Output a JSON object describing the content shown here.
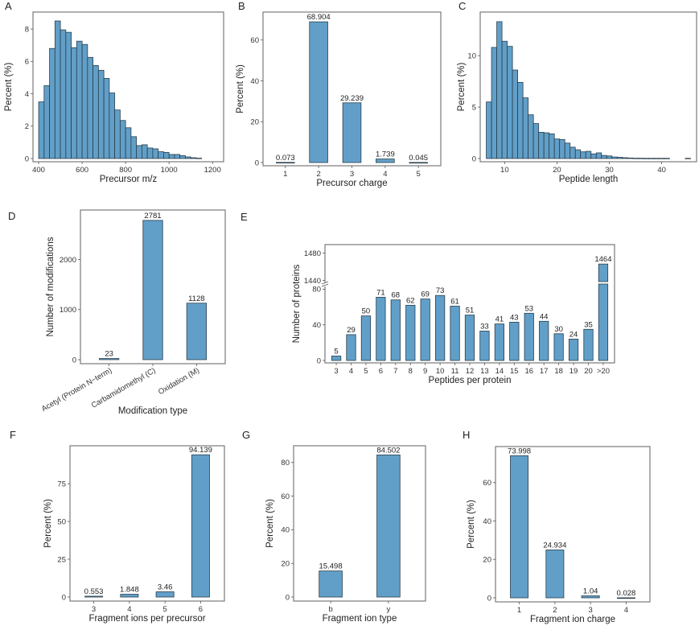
{
  "figure": {
    "bar_color": "#619fc8",
    "edge_color": "#2b3f4c",
    "frame_color": "#7a7a7a"
  },
  "chart_data": [
    {
      "id": "A",
      "panel_label": "A",
      "type": "bar",
      "subtype": "histogram",
      "xlabel": "Precursor m/z",
      "ylabel": "Percent (%)",
      "xlim": [
        385,
        1240
      ],
      "ylim": [
        0,
        8.9
      ],
      "xticks": [
        400,
        600,
        800,
        1000,
        1200
      ],
      "yticks": [
        0,
        2,
        4,
        6,
        8
      ],
      "bin_start": 400,
      "bin_width": 25,
      "values": [
        3.5,
        4.5,
        6.8,
        8.5,
        7.95,
        7.8,
        6.85,
        7.25,
        7.05,
        6.25,
        5.75,
        5.45,
        4.95,
        4.05,
        3.0,
        2.35,
        1.9,
        1.35,
        0.8,
        0.85,
        0.65,
        0.6,
        0.42,
        0.38,
        0.25,
        0.25,
        0.18,
        0.1,
        0.05,
        0.02
      ],
      "grid": false
    },
    {
      "id": "B",
      "panel_label": "B",
      "type": "bar",
      "xlabel": "Precursor charge",
      "ylabel": "Percent (%)",
      "ylim": [
        0,
        72.5
      ],
      "yticks": [
        0,
        20,
        40,
        60
      ],
      "categories": [
        "1",
        "2",
        "3",
        "4",
        "5"
      ],
      "values": [
        0.073,
        68.904,
        29.239,
        1.739,
        0.045
      ],
      "data_labels": [
        "0.073",
        "68.904",
        "29.239",
        "1.739",
        "0.045"
      ],
      "grid": false
    },
    {
      "id": "C",
      "panel_label": "C",
      "type": "bar",
      "subtype": "histogram",
      "xlabel": "Peptide length",
      "ylabel": "Percent (%)",
      "xlim": [
        5.8,
        46.2
      ],
      "ylim": [
        0,
        14.0
      ],
      "xticks": [
        10,
        20,
        30,
        40
      ],
      "yticks": [
        0,
        5,
        10
      ],
      "x": [
        7,
        8,
        9,
        10,
        11,
        12,
        13,
        14,
        15,
        16,
        17,
        18,
        19,
        20,
        21,
        22,
        23,
        24,
        25,
        26,
        27,
        28,
        29,
        30,
        31,
        32,
        33,
        34,
        35,
        36,
        37,
        38,
        39,
        40,
        41,
        45
      ],
      "values": [
        5.5,
        10.8,
        13.3,
        11.4,
        10.9,
        8.6,
        7.4,
        5.9,
        4.25,
        3.4,
        2.55,
        2.5,
        2.4,
        1.9,
        1.85,
        1.5,
        1.1,
        0.85,
        0.65,
        0.7,
        0.45,
        0.55,
        0.3,
        0.25,
        0.15,
        0.12,
        0.08,
        0.05,
        0.03,
        0.03,
        0.02,
        0.02,
        0.02,
        0.02,
        0.02,
        0.02
      ],
      "grid": false
    },
    {
      "id": "D",
      "panel_label": "D",
      "type": "bar",
      "xlabel": "Modification type",
      "ylabel": "Number of modifications",
      "ylim": [
        0,
        2940
      ],
      "yticks": [
        0,
        1000,
        2000
      ],
      "categories": [
        "Acetyl (Protein N−term)",
        "Carbamidomethyl (C)",
        "Oxidation (M)"
      ],
      "values": [
        23,
        2781,
        1128
      ],
      "data_labels": [
        "23",
        "2781",
        "1128"
      ],
      "grid": false
    },
    {
      "id": "E",
      "panel_label": "E",
      "type": "bar",
      "subtype": "broken-axis",
      "xlabel": "Peptides per protein",
      "ylabel": "Number of proteins",
      "ylim_lower": [
        0,
        84
      ],
      "ylim_upper": [
        1436,
        1490
      ],
      "yticks_lower": [
        0,
        40,
        80
      ],
      "yticks_upper": [
        1440,
        1480
      ],
      "categories": [
        "3",
        "4",
        "5",
        "6",
        "7",
        "8",
        "9",
        "10",
        "11",
        "12",
        "13",
        "14",
        "15",
        "16",
        "17",
        "18",
        "19",
        "20",
        ">20"
      ],
      "values": [
        5,
        29,
        50,
        71,
        68,
        62,
        69,
        73,
        61,
        51,
        33,
        41,
        43,
        53,
        44,
        30,
        24,
        35,
        1464
      ],
      "data_labels": [
        "5",
        "29",
        "50",
        "71",
        "68",
        "62",
        "69",
        "73",
        "61",
        "51",
        "33",
        "41",
        "43",
        "53",
        "44",
        "30",
        "24",
        "35",
        "1464"
      ],
      "grid": false
    },
    {
      "id": "F",
      "panel_label": "F",
      "type": "bar",
      "xlabel": "Fragment ions per precursor",
      "ylabel": "Percent (%)",
      "ylim": [
        0,
        98.5
      ],
      "yticks": [
        0,
        25,
        50,
        75
      ],
      "categories": [
        "3",
        "4",
        "5",
        "6"
      ],
      "values": [
        0.553,
        1.848,
        3.46,
        94.139
      ],
      "data_labels": [
        "0.553",
        "1.848",
        "3.46",
        "94.139"
      ],
      "grid": false
    },
    {
      "id": "G",
      "panel_label": "G",
      "type": "bar",
      "xlabel": "Fragment ion type",
      "ylabel": "Percent (%)",
      "ylim": [
        0,
        88.5
      ],
      "yticks": [
        0,
        20,
        40,
        60,
        80
      ],
      "categories": [
        "b",
        "y"
      ],
      "values": [
        15.498,
        84.502
      ],
      "data_labels": [
        "15.498",
        "84.502"
      ],
      "grid": false
    },
    {
      "id": "H",
      "panel_label": "H",
      "type": "bar",
      "xlabel": "Fragment ion charge",
      "ylabel": "Percent (%)",
      "ylim": [
        0,
        77.5
      ],
      "yticks": [
        0,
        20,
        40,
        60
      ],
      "categories": [
        "1",
        "2",
        "3",
        "4"
      ],
      "values": [
        73.998,
        24.934,
        1.04,
        0.028
      ],
      "data_labels": [
        "73.998",
        "24.934",
        "1.04",
        "0.028"
      ],
      "grid": false
    }
  ]
}
